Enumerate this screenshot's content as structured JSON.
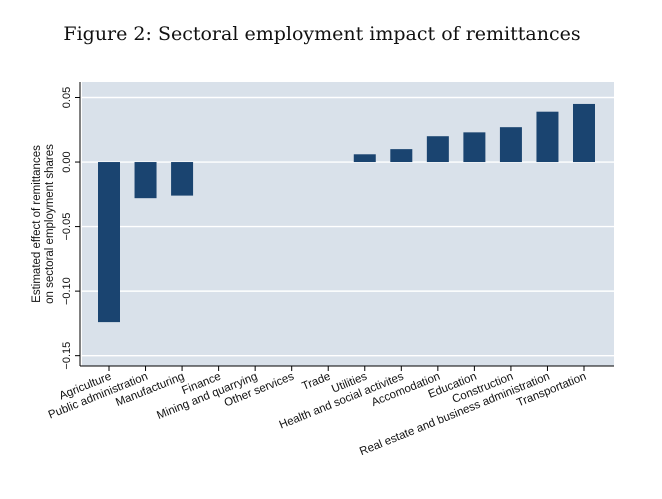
{
  "chart_data": {
    "type": "bar",
    "title": "Figure 2: Sectoral employment impact of remittances",
    "xlabel": "",
    "ylabel_lines": [
      "Estimated effect of remittances",
      "on sectoral employment shares"
    ],
    "ylim": [
      -0.158,
      0.062
    ],
    "yticks": [
      0.05,
      0.0,
      -0.05,
      -0.1,
      -0.15
    ],
    "ytick_labels": [
      "0.05",
      "0.00",
      "−0.05",
      "−0.10",
      "−0.15"
    ],
    "grid": true,
    "legend": "none",
    "categories": [
      "Agriculture",
      "Public administration",
      "Manufacturing",
      "Finance",
      "Mining and quarrying",
      "Other services",
      "Trade",
      "Utilities",
      "Health and social activites",
      "Accomodation",
      "Education",
      "Construction",
      "Real estate and business administration",
      "Transportation"
    ],
    "values": [
      -0.124,
      -0.028,
      -0.026,
      0,
      0,
      0,
      0,
      0.006,
      0.01,
      0.02,
      0.023,
      0.027,
      0.039,
      0.045
    ],
    "colors": {
      "bar": "#1a4470",
      "plot_background": "#d9e1ea",
      "gridline": "#ffffff",
      "axis": "#000000"
    }
  }
}
